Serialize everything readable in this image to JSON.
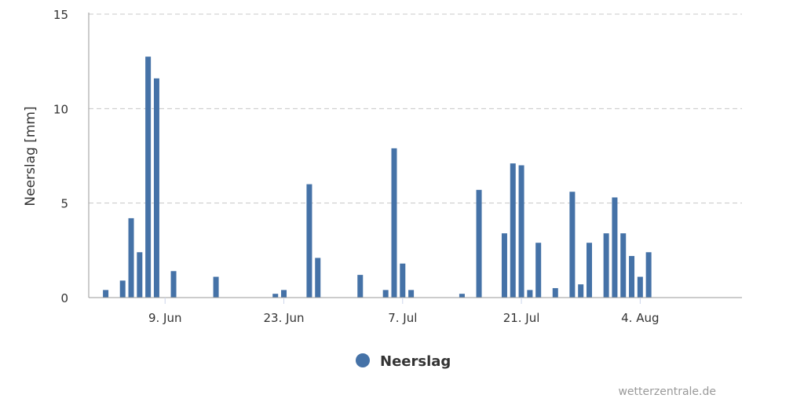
{
  "chart_data": {
    "type": "bar",
    "title": "",
    "xlabel": "",
    "ylabel": "Neerslag [mm]",
    "ylim": [
      0,
      15
    ],
    "yticks": [
      "0",
      "5",
      "10",
      "15"
    ],
    "xlim": [
      "31 May",
      "16 Aug"
    ],
    "xticks": [
      "9. Jun",
      "23. Jun",
      "7. Jul",
      "21. Jul",
      "4. Aug"
    ],
    "xtick_dates": [
      "9 Jun",
      "23 Jun",
      "7 Jul",
      "21 Jul",
      "4 Aug"
    ],
    "grid": "horizontal dashed",
    "legend_position": "bottom",
    "series": [
      {
        "name": "Neerslag",
        "color": "#4572a7",
        "x": [
          "2 Jun",
          "4 Jun",
          "5 Jun",
          "6 Jun",
          "7 Jun",
          "8 Jun",
          "10 Jun",
          "15 Jun",
          "22 Jun",
          "23 Jun",
          "26 Jun",
          "27 Jun",
          "2 Jul",
          "5 Jul",
          "6 Jul",
          "7 Jul",
          "8 Jul",
          "14 Jul",
          "16 Jul",
          "19 Jul",
          "20 Jul",
          "21 Jul",
          "22 Jul",
          "23 Jul",
          "25 Jul",
          "27 Jul",
          "28 Jul",
          "29 Jul",
          "31 Jul",
          "1 Aug",
          "2 Aug",
          "3 Aug",
          "4 Aug",
          "5 Aug"
        ],
        "values": [
          0.4,
          0.9,
          4.2,
          2.4,
          12.75,
          11.6,
          1.4,
          1.1,
          0.2,
          0.4,
          6.0,
          2.1,
          1.2,
          0.4,
          7.9,
          1.8,
          0.4,
          0.2,
          5.7,
          3.4,
          7.1,
          7.0,
          0.4,
          2.9,
          0.5,
          5.6,
          0.7,
          2.9,
          3.4,
          5.3,
          3.4,
          2.2,
          1.1,
          2.4
        ]
      }
    ]
  },
  "credit": "wetterzentrale.de"
}
